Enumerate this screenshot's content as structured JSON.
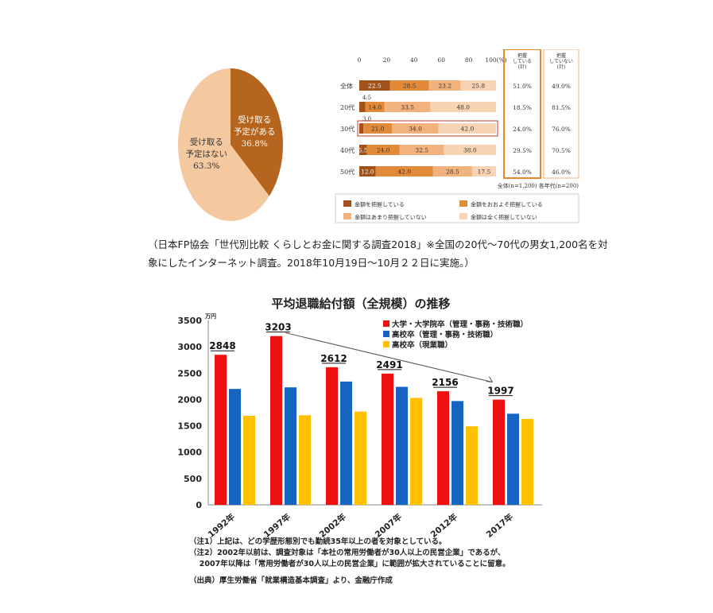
{
  "pie": {
    "slices": [
      {
        "label_lines": [
          "受け取る",
          "予定がある"
        ],
        "value_label": "36.8%",
        "value": 36.8,
        "color": "#b5651d",
        "text_color": "#ffffff"
      },
      {
        "label_lines": [
          "受け取る",
          "予定はない"
        ],
        "value_label": "63.3%",
        "value": 63.3,
        "color": "#f5c9a0",
        "text_color": "#333333"
      }
    ]
  },
  "stacked_bar": {
    "axis_ticks": [
      "0",
      "20",
      "40",
      "60",
      "80",
      "100(%)"
    ],
    "rows": [
      {
        "label": "全体",
        "values": [
          22.5,
          28.5,
          23.2,
          25.8
        ],
        "value_labels": [
          "22.5",
          "28.5",
          "23.2",
          "25.8"
        ],
        "known": "51.0%",
        "unknown": "49.0%"
      },
      {
        "label": "20代",
        "values": [
          4.5,
          14.0,
          33.5,
          48.0
        ],
        "value_labels": [
          "4.5",
          "14.0",
          "33.5",
          "48.0"
        ],
        "known": "18.5%",
        "unknown": "81.5%"
      },
      {
        "label": "30代",
        "values": [
          3.0,
          21.0,
          34.0,
          42.0
        ],
        "value_labels": [
          "3.0",
          "21.0",
          "34.0",
          "42.0"
        ],
        "known": "24.0%",
        "unknown": "76.0%"
      },
      {
        "label": "40代",
        "values": [
          5.5,
          24.0,
          32.5,
          38.0
        ],
        "value_labels": [
          "5.5",
          "24.0",
          "32.5",
          "38.0"
        ],
        "known": "29.5%",
        "unknown": "70.5%"
      },
      {
        "label": "50代",
        "values": [
          12.0,
          42.0,
          28.5,
          17.5
        ],
        "value_labels": [
          "12.0",
          "42.0",
          "28.5",
          "17.5"
        ],
        "known": "54.0%",
        "unknown": "46.0%"
      }
    ],
    "segment_colors": [
      "#a0521a",
      "#e08a3a",
      "#f2b27e",
      "#f8d4b4"
    ],
    "col_known_header": [
      "把握",
      "している",
      "(計)"
    ],
    "col_unknown_header": [
      "把握",
      "していない",
      "(計)"
    ],
    "note": "全体(n=1,200) 各年代(n=200)",
    "legend": [
      "金額を把握している",
      "金額をおおよそ把握している",
      "金額はあまり把握していない",
      "金額は全く把握していない"
    ]
  },
  "caption": {
    "line1": "（日本FP協会「世代別比較 くらしとお金に関する調査2018」※全国の20代〜70代の男女1,200名を対",
    "line2": "象にしたインターネット調査。2018年10月19日〜10月２２日に実施。）"
  },
  "chart_data": [
    {
      "type": "bar",
      "title": "平均退職給付額（全規模）の推移",
      "ylabel": "万円",
      "ylim": [
        0,
        3500
      ],
      "y_ticks": [
        "0",
        "500",
        "1000",
        "1500",
        "2000",
        "2500",
        "3000",
        "3500"
      ],
      "categories": [
        "1992年",
        "1997年",
        "2002年",
        "2007年",
        "2012年",
        "2017年"
      ],
      "series": [
        {
          "name": "大学・大学院卒（管理・事務・技術職）",
          "color": "#ee1111",
          "values": [
            2848,
            3203,
            2612,
            2491,
            2156,
            1997
          ]
        },
        {
          "name": "高校卒（管理・事務・技術職）",
          "color": "#1565c0",
          "values": [
            2200,
            2230,
            2340,
            2240,
            1970,
            1730
          ]
        },
        {
          "name": "高校卒（現業職）",
          "color": "#ffc000",
          "values": [
            1690,
            1700,
            1770,
            2030,
            1490,
            1630
          ]
        }
      ],
      "data_labels": [
        "2848",
        "3203",
        "2612",
        "2491",
        "2156",
        "1997"
      ],
      "legend_position": "top-right",
      "grid": false,
      "notes": [
        "（注1）上記は、どの学歴形態別でも勤続35年以上の者を対象としている。",
        "（注2）2002年以前は、調査対象は「本社の常用労働者が30人以上の民営企業」であるが、",
        "　 2007年以降は「常用労働者が30人以上の民営企業」に範囲が拡大されていることに留意。",
        "（出典）厚生労働省「就業構造基本調査」より、金融庁作成"
      ]
    }
  ]
}
